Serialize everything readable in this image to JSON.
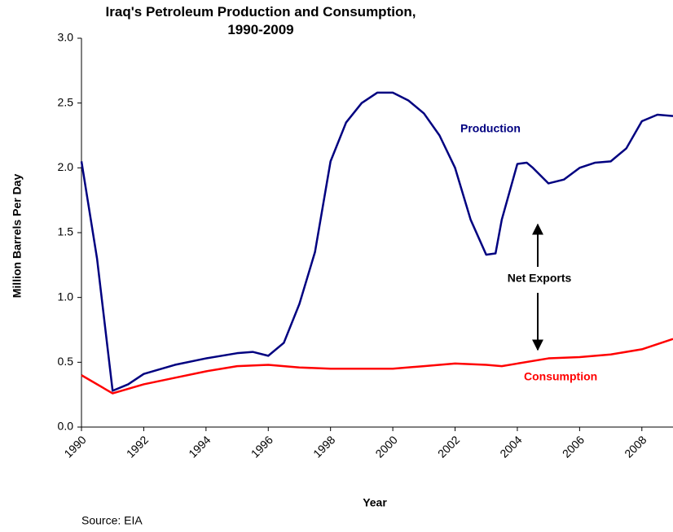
{
  "chart_data": {
    "type": "line",
    "title": "Iraq's Petroleum Production and Consumption, 1990-2009",
    "xlabel": "Year",
    "ylabel": "Million Barrels Per Day",
    "source": "Source: EIA",
    "annotations": [
      "Production",
      "Consumption",
      "Net Exports"
    ],
    "xlim": [
      1990,
      2009
    ],
    "ylim": [
      0,
      3
    ],
    "xticks": [
      1990,
      1992,
      1994,
      1996,
      1998,
      2000,
      2002,
      2004,
      2006,
      2008
    ],
    "yticks": [
      {
        "value": 0,
        "label": "0.0"
      },
      {
        "value": 0.5,
        "label": "0.5"
      },
      {
        "value": 1,
        "label": "1.0"
      },
      {
        "value": 1.5,
        "label": "1.5"
      },
      {
        "value": 2,
        "label": "2.0"
      },
      {
        "value": 2.5,
        "label": "2.5"
      },
      {
        "value": 3,
        "label": "3.0"
      }
    ],
    "series": [
      {
        "name": "Production",
        "color": "#000080",
        "x": [
          1990,
          1990.5,
          1991,
          1991.5,
          1992,
          1993,
          1994,
          1995,
          1995.5,
          1996,
          1996.5,
          1997,
          1997.5,
          1998,
          1998.5,
          1999,
          1999.5,
          2000,
          2000.5,
          2001,
          2001.5,
          2002,
          2002.5,
          2003,
          2003.3,
          2003.5,
          2004,
          2004.3,
          2004.5,
          2005,
          2005.5,
          2006,
          2006.5,
          2007,
          2007.5,
          2008,
          2008.5,
          2009
        ],
        "values": [
          2.05,
          1.3,
          0.28,
          0.33,
          0.41,
          0.48,
          0.53,
          0.57,
          0.58,
          0.55,
          0.65,
          0.95,
          1.35,
          2.05,
          2.35,
          2.5,
          2.58,
          2.58,
          2.52,
          2.42,
          2.25,
          2.0,
          1.6,
          1.33,
          1.34,
          1.6,
          2.03,
          2.04,
          2.0,
          1.88,
          1.91,
          2.0,
          2.04,
          2.05,
          2.15,
          2.36,
          2.41,
          2.4
        ]
      },
      {
        "name": "Consumption",
        "color": "#ff0000",
        "x": [
          1990,
          1991,
          1992,
          1993,
          1994,
          1995,
          1996,
          1997,
          1998,
          1999,
          2000,
          2001,
          2002,
          2003,
          2003.5,
          2004,
          2005,
          2006,
          2007,
          2008,
          2009
        ],
        "values": [
          0.4,
          0.26,
          0.33,
          0.38,
          0.43,
          0.47,
          0.48,
          0.46,
          0.45,
          0.45,
          0.45,
          0.47,
          0.49,
          0.48,
          0.47,
          0.49,
          0.53,
          0.54,
          0.56,
          0.6,
          0.68
        ]
      }
    ]
  }
}
